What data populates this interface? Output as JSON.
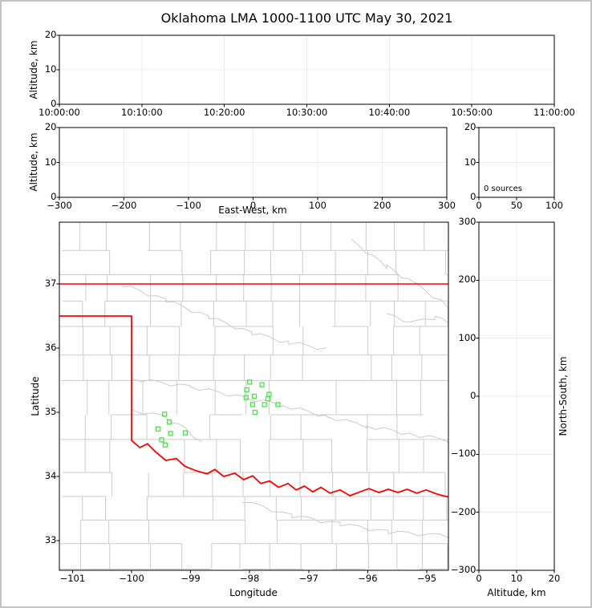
{
  "title": "Oklahoma LMA 1000-1100 UTC May 30, 2021",
  "colors": {
    "background": "#ffffff",
    "frame": "#c3c3c3",
    "axis": "#000000",
    "gridline": "#ececec",
    "county_lines": "#cbcbcb",
    "state_border": "#ff0000",
    "station_marker": "#4ce24c"
  },
  "panels": {
    "time_height": {
      "ylabel": "Altitude, km",
      "yticks_top_to_bottom": [
        "20",
        "10",
        "0"
      ],
      "xticks": [
        "10:00:00",
        "10:10:00",
        "10:20:00",
        "10:30:00",
        "10:40:00",
        "10:50:00",
        "11:00:00"
      ]
    },
    "ew_height": {
      "ylabel": "Altitude, km",
      "xlabel": "East-West, km",
      "yticks_top_to_bottom": [
        "20",
        "10",
        "0"
      ],
      "xticks": [
        "−300",
        "−200",
        "−100",
        "0",
        "100",
        "200",
        "300"
      ]
    },
    "alt_histogram": {
      "annotation": "0 sources",
      "yticks_top_to_bottom": [
        "20",
        "10",
        "0"
      ],
      "xticks": [
        "0",
        "50",
        "100"
      ]
    },
    "map": {
      "ylabel": "Latitude",
      "xlabel": "Longitude",
      "yticks_top_to_bottom": [
        "37",
        "36",
        "35",
        "34",
        "33"
      ],
      "xticks": [
        "−101",
        "−100",
        "−99",
        "−98",
        "−97",
        "−96",
        "−95"
      ]
    },
    "ns_height": {
      "xlabel": "Altitude, km",
      "ylabel_right": "North-South, km",
      "yticks_top_to_bottom": [
        "300",
        "200",
        "100",
        "0",
        "−100",
        "−200",
        "−300"
      ],
      "xticks": [
        "0",
        "10",
        "20"
      ]
    }
  },
  "chart_data": {
    "type": "scatter",
    "title": "Oklahoma LMA 1000-1100 UTC May 30, 2021",
    "time_axis_range": [
      "10:00:00",
      "11:00:00"
    ],
    "altitude_km_range": [
      0,
      20
    ],
    "east_west_km_range": [
      -300,
      300
    ],
    "north_south_km_range": [
      -300,
      300
    ],
    "altitude_hist_count_range": [
      0,
      100
    ],
    "map_lon_range": [
      -101.22,
      -94.63
    ],
    "map_lat_range": [
      32.54,
      37.96
    ],
    "lightning_sources": [],
    "source_count_label": "0 sources",
    "lma_stations_lon_lat": [
      [
        -99.44,
        34.97
      ],
      [
        -99.36,
        34.85
      ],
      [
        -99.55,
        34.74
      ],
      [
        -99.34,
        34.67
      ],
      [
        -99.09,
        34.68
      ],
      [
        -99.49,
        34.57
      ],
      [
        -99.43,
        34.49
      ],
      [
        -98.0,
        35.47
      ],
      [
        -97.79,
        35.43
      ],
      [
        -98.05,
        35.35
      ],
      [
        -97.92,
        35.25
      ],
      [
        -97.67,
        35.28
      ],
      [
        -97.69,
        35.21
      ],
      [
        -98.06,
        35.23
      ],
      [
        -97.95,
        35.12
      ],
      [
        -97.75,
        35.12
      ],
      [
        -97.52,
        35.12
      ],
      [
        -97.91,
        35.0
      ]
    ],
    "oklahoma_border": {
      "north_lat": 37.0,
      "panhandle_south_lat": 36.5,
      "panhandle_east_lon": -100.0,
      "red_river_lon_lat": [
        [
          -100.0,
          34.56
        ],
        [
          -99.86,
          34.45
        ],
        [
          -99.73,
          34.51
        ],
        [
          -99.59,
          34.38
        ],
        [
          -99.42,
          34.25
        ],
        [
          -99.24,
          34.28
        ],
        [
          -99.1,
          34.16
        ],
        [
          -98.91,
          34.09
        ],
        [
          -98.72,
          34.04
        ],
        [
          -98.59,
          34.11
        ],
        [
          -98.44,
          34.0
        ],
        [
          -98.25,
          34.05
        ],
        [
          -98.1,
          33.95
        ],
        [
          -97.95,
          34.01
        ],
        [
          -97.81,
          33.89
        ],
        [
          -97.66,
          33.93
        ],
        [
          -97.51,
          33.83
        ],
        [
          -97.35,
          33.89
        ],
        [
          -97.21,
          33.79
        ],
        [
          -97.07,
          33.85
        ],
        [
          -96.93,
          33.76
        ],
        [
          -96.79,
          33.83
        ],
        [
          -96.64,
          33.74
        ],
        [
          -96.47,
          33.79
        ],
        [
          -96.3,
          33.7
        ],
        [
          -96.13,
          33.76
        ],
        [
          -95.98,
          33.81
        ],
        [
          -95.81,
          33.75
        ],
        [
          -95.65,
          33.8
        ],
        [
          -95.49,
          33.75
        ],
        [
          -95.33,
          33.8
        ],
        [
          -95.17,
          33.74
        ],
        [
          -95.01,
          33.79
        ],
        [
          -94.84,
          33.73
        ],
        [
          -94.73,
          33.7
        ],
        [
          -94.63,
          33.68
        ]
      ]
    }
  }
}
